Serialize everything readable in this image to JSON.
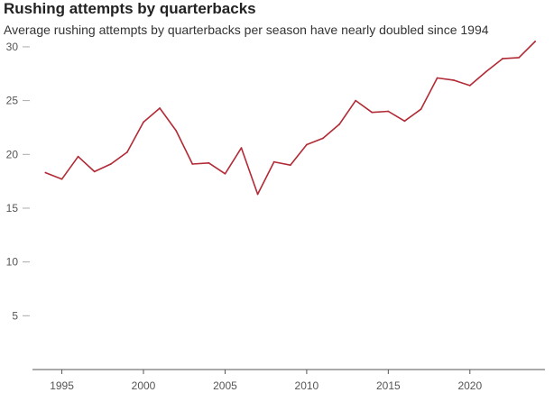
{
  "chart_data": {
    "type": "line",
    "title": "Rushing attempts by quarterbacks",
    "subtitle": "Average rushing attempts by quarterbacks per season have nearly doubled since 1994",
    "xlabel": "",
    "ylabel": "",
    "xlim": [
      1993.2,
      2024.6
    ],
    "ylim": [
      0,
      31
    ],
    "x_ticks": [
      1995,
      2000,
      2005,
      2010,
      2015,
      2020
    ],
    "y_ticks": [
      5,
      10,
      15,
      20,
      25,
      30
    ],
    "grid": false,
    "colors": {
      "line": "#b22a35",
      "axis": "#555555",
      "tick": "#aaaaaa"
    },
    "series": [
      {
        "x": [
          1994,
          1995,
          1996,
          1997,
          1998,
          1999,
          2000,
          2001,
          2002,
          2003,
          2004,
          2005,
          2006,
          2007,
          2008,
          2009,
          2010,
          2011,
          2012,
          2013,
          2014,
          2015,
          2016,
          2017,
          2018,
          2019,
          2020,
          2021,
          2022,
          2023,
          2024
        ],
        "values": [
          18.3,
          17.7,
          19.8,
          18.4,
          19.1,
          20.2,
          23.0,
          24.3,
          22.2,
          19.1,
          19.2,
          18.2,
          20.6,
          16.3,
          19.3,
          19.0,
          20.9,
          21.5,
          22.8,
          25.0,
          23.9,
          24.0,
          23.1,
          24.2,
          27.1,
          26.9,
          26.4,
          27.7,
          28.9,
          29.0,
          30.5
        ]
      }
    ]
  }
}
